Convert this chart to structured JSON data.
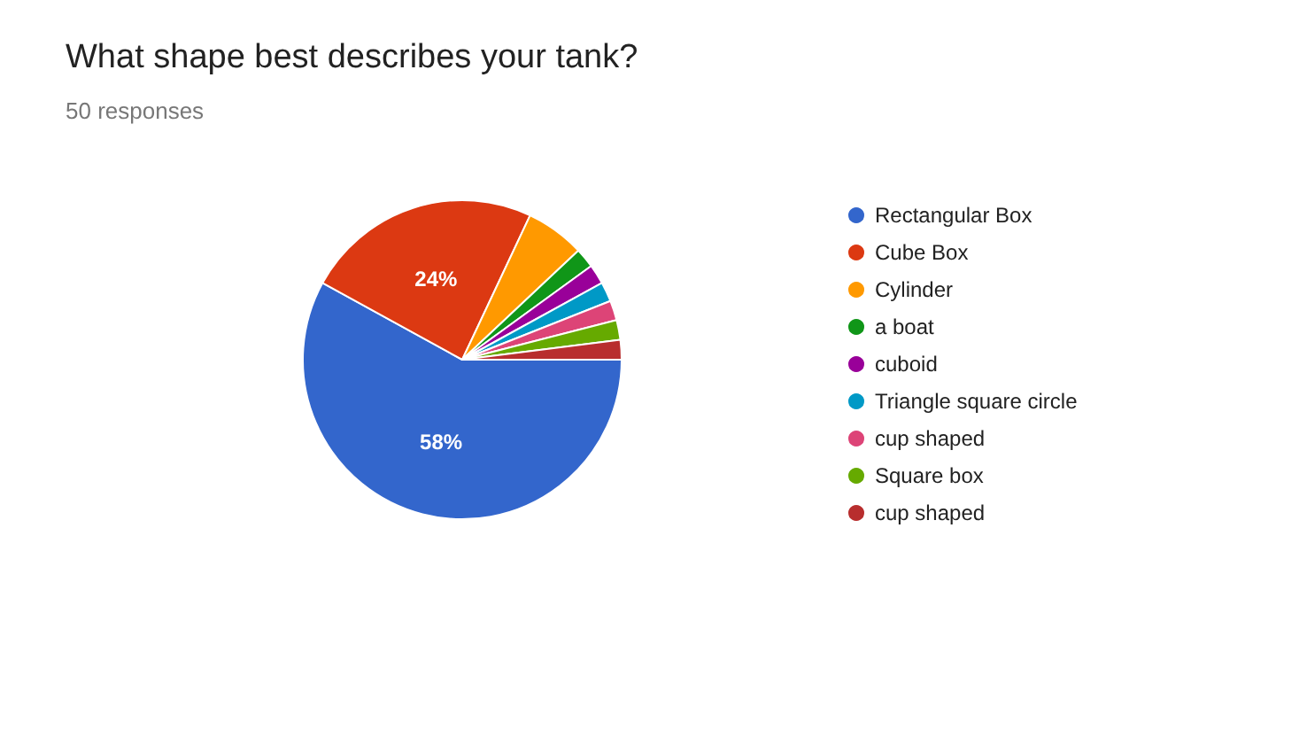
{
  "chart_data": {
    "type": "pie",
    "title": "What shape best describes your tank?",
    "subtitle": "50 responses",
    "categories": [
      "Rectangular Box",
      "Cube Box",
      "Cylinder",
      "a boat",
      "cuboid",
      "Triangle square circle",
      "cup shaped",
      "Square box",
      "cup shaped"
    ],
    "values": [
      58,
      24,
      6,
      2,
      2,
      2,
      2,
      2,
      2
    ],
    "colors": [
      "#3366cc",
      "#dc3912",
      "#ff9900",
      "#109618",
      "#990099",
      "#0099c6",
      "#dd4477",
      "#66aa00",
      "#b82e2e"
    ],
    "value_labels": [
      "58%",
      "24%",
      null,
      null,
      null,
      null,
      null,
      null,
      null
    ],
    "legend": "right"
  }
}
